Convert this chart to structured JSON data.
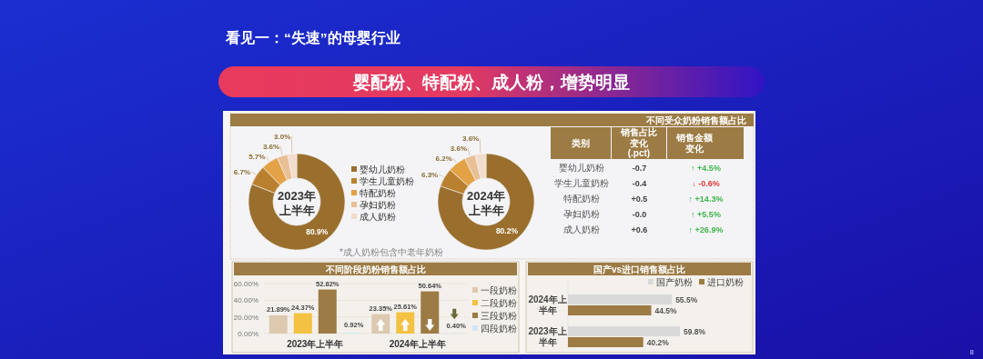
{
  "chart_data": [
    {
      "type": "other",
      "title": "看见一：“失速”的母婴行业",
      "subtitle": "婴配粉、特配粉、成人粉，增势明显",
      "annotations": [
        "8",
        "不同受众奶粉销售额占比"
      ]
    },
    {
      "type": "donut",
      "categories": [
        "婴幼儿奶粉",
        "学生儿童奶粉",
        "特配奶粉",
        "孕妇奶粉",
        "成人奶粉"
      ],
      "values": [
        80.9,
        6.7,
        5.7,
        3.6,
        3.0
      ],
      "value_labels": [
        "80.9%",
        "6.7%",
        "5.7%",
        "3.6%",
        "3.0%"
      ],
      "colors": [
        "#9a6f2e",
        "#b9812f",
        "#e3a245",
        "#e9bf95",
        "#f2dccb"
      ],
      "legend": "right",
      "annotations": [
        "2023年",
        "上半年"
      ]
    },
    {
      "type": "donut",
      "categories": [
        null,
        null,
        null,
        null,
        null
      ],
      "values": [
        80.2,
        6.3,
        6.2,
        3.6,
        3.6
      ],
      "value_labels": [
        "80.2%",
        "6.3%",
        "6.2%",
        "3.6%",
        "3.6%"
      ],
      "colors": [
        "#9a6f2e",
        "#b9812f",
        "#e3a245",
        "#e9bf95",
        "#f2dccb"
      ],
      "annotations": [
        "2024年",
        "上半年",
        "*成人奶粉包含中老年奶粉"
      ]
    },
    {
      "type": "other",
      "xlabel": "类别",
      "categories": [
        "婴幼儿奶粉",
        "学生儿童奶粉",
        "特配奶粉",
        "孕妇奶粉",
        "成人奶粉"
      ],
      "series": [
        {
          "name": "销售占比变化(.pct)",
          "values": [
            -0.7,
            -0.4,
            0.5,
            -0.0,
            0.6
          ],
          "value_labels": [
            "-0.7",
            "-0.4",
            "+0.5",
            "-0.0",
            "+0.6"
          ]
        },
        {
          "name": "销售金额变化",
          "colors": [
            "#3db54a",
            "#e03a3a",
            "#3db54a",
            "#3db54a",
            "#3db54a"
          ],
          "values": [
            4.5,
            -0.6,
            14.3,
            5.5,
            26.9
          ],
          "value_labels": [
            "↑ +4.5%",
            "↓ -0.6%",
            "↑ +14.3%",
            "↑ +5.5%",
            "↑ +26.9%"
          ]
        }
      ]
    },
    {
      "type": "bar",
      "title": "不同阶段奶粉销售额占比",
      "categories": [
        "2023年上半年",
        "2024年上半年"
      ],
      "ylim": [
        0,
        60
      ],
      "yticks": [
        {
          "value": 0,
          "label": "0.00%"
        },
        {
          "value": 20,
          "label": "20.00%"
        },
        {
          "value": 40,
          "label": "40.00%"
        },
        {
          "value": 60,
          "label": "60.00%"
        }
      ],
      "grid": "y",
      "legend": "right",
      "series": [
        {
          "name": "一段奶粉",
          "color": "#dcc9b0",
          "values": [
            21.89,
            23.35
          ],
          "value_labels": [
            "21.89%",
            "23.35%"
          ]
        },
        {
          "name": "二段奶粉",
          "color": "#f3c242",
          "values": [
            24.37,
            25.61
          ],
          "value_labels": [
            "24.37%",
            "25.61%"
          ]
        },
        {
          "name": "三段奶粉",
          "color": "#9c7b45",
          "values": [
            52.82,
            50.64
          ],
          "value_labels": [
            "52.82%",
            "50.64%"
          ]
        },
        {
          "name": "四段奶粉",
          "color": "#cfe6f3",
          "values": [
            0.92,
            0.4
          ],
          "value_labels": [
            "0.92%",
            "0.40%"
          ]
        }
      ]
    },
    {
      "type": "bar",
      "orientation": "horizontal",
      "title": "国产vs进口销售额占比",
      "categories": [
        "2024年上半年",
        "2023年上半年"
      ],
      "legend": "top right",
      "series": [
        {
          "name": "国产奶粉",
          "color": "#d9d9d9",
          "values": [
            55.5,
            59.8
          ],
          "value_labels": [
            "55.5%",
            "59.8%"
          ]
        },
        {
          "name": "进口奶粉",
          "color": "#9c7b45",
          "values": [
            44.5,
            40.2
          ],
          "value_labels": [
            "44.5%",
            "40.2%"
          ]
        }
      ]
    }
  ]
}
